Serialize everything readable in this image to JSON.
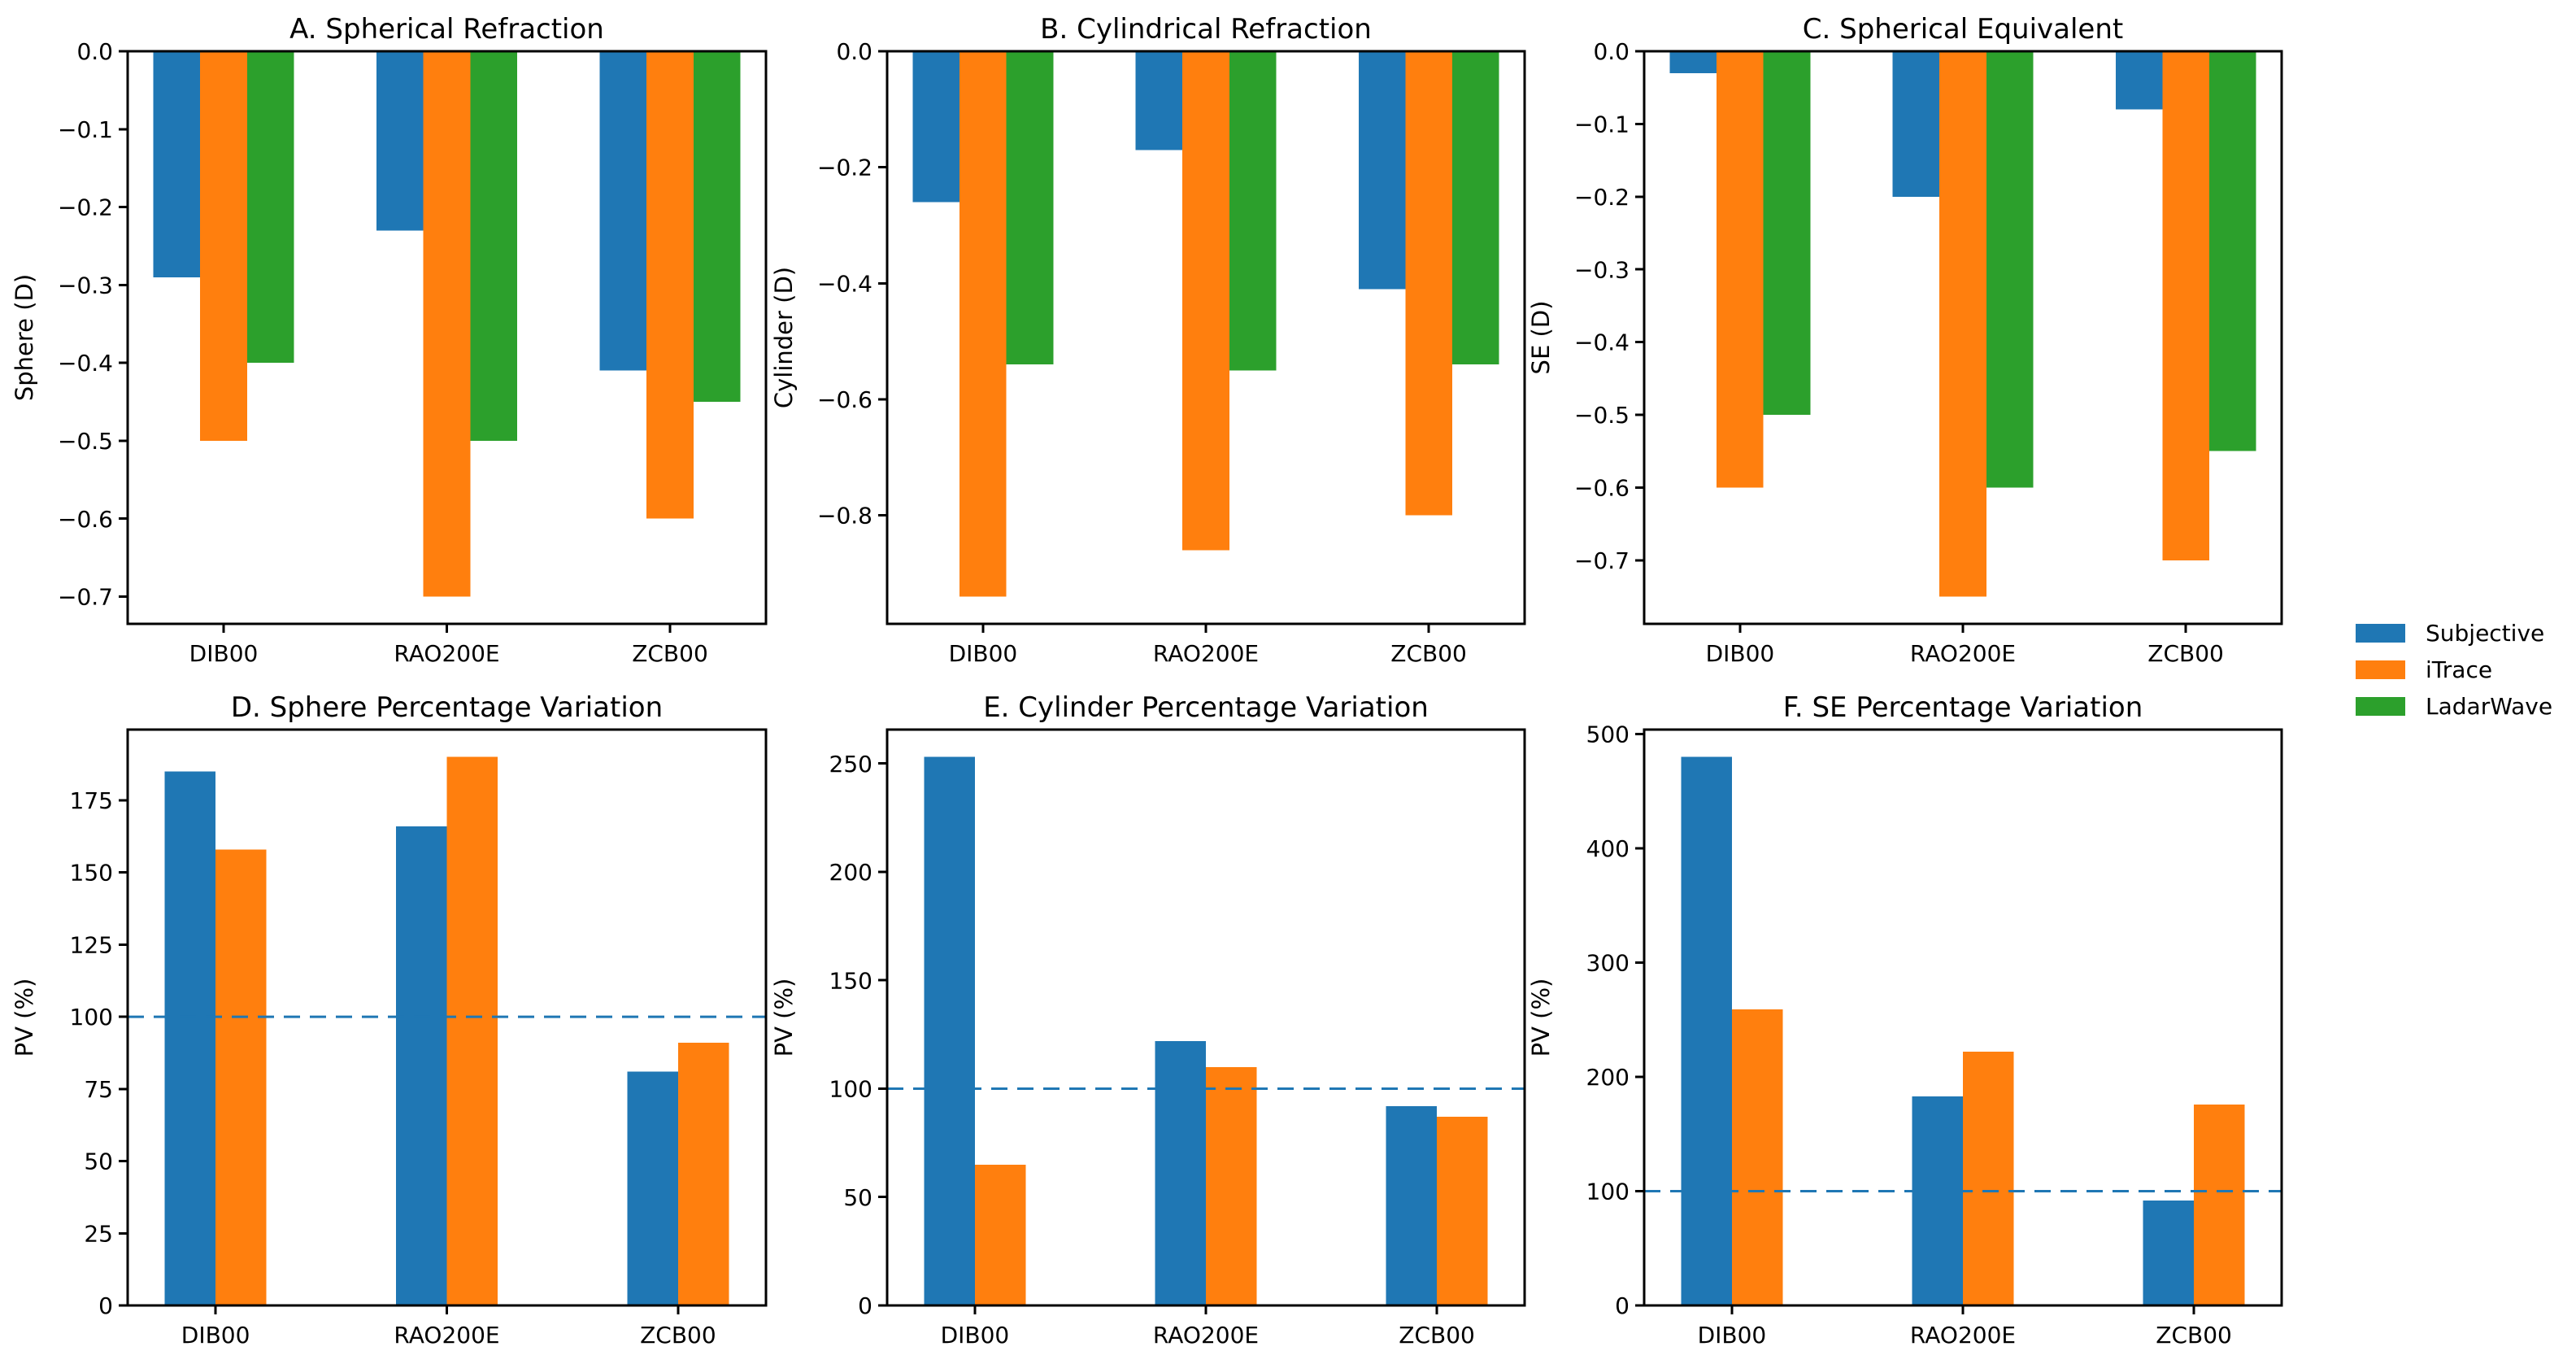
{
  "figure": {
    "background_color": "#ffffff"
  },
  "legend": {
    "position": "outside-right-center",
    "items": [
      {
        "label": "Subjective",
        "color": "#1f77b4"
      },
      {
        "label": "iTrace",
        "color": "#ff7f0e"
      },
      {
        "label": "LadarWave",
        "color": "#2ca02c"
      }
    ]
  },
  "reference_line_color": "#1f77b4",
  "axis_color": "#000000",
  "chart_data": [
    {
      "id": "A",
      "type": "bar",
      "title": "A. Spherical Refraction",
      "ylabel": "Sphere (D)",
      "categories": [
        "DIB00",
        "RAO200E",
        "ZCB00"
      ],
      "series": [
        {
          "name": "Subjective",
          "color": "#1f77b4",
          "values": [
            -0.29,
            -0.23,
            -0.41
          ]
        },
        {
          "name": "iTrace",
          "color": "#ff7f0e",
          "values": [
            -0.5,
            -0.7,
            -0.6
          ]
        },
        {
          "name": "LadarWave",
          "color": "#2ca02c",
          "values": [
            -0.4,
            -0.5,
            -0.45
          ]
        }
      ],
      "yticks": [
        0.0,
        -0.1,
        -0.2,
        -0.3,
        -0.4,
        -0.5,
        -0.6,
        -0.7
      ],
      "ytick_labels": [
        "0.0",
        "−0.1",
        "−0.2",
        "−0.3",
        "−0.4",
        "−0.5",
        "−0.6",
        "−0.7"
      ],
      "ylim": [
        -0.735,
        0
      ],
      "grid": false,
      "reference_line": null
    },
    {
      "id": "B",
      "type": "bar",
      "title": "B. Cylindrical Refraction",
      "ylabel": "Cylinder (D)",
      "categories": [
        "DIB00",
        "RAO200E",
        "ZCB00"
      ],
      "series": [
        {
          "name": "Subjective",
          "color": "#1f77b4",
          "values": [
            -0.26,
            -0.17,
            -0.41
          ]
        },
        {
          "name": "iTrace",
          "color": "#ff7f0e",
          "values": [
            -0.94,
            -0.86,
            -0.8
          ]
        },
        {
          "name": "LadarWave",
          "color": "#2ca02c",
          "values": [
            -0.54,
            -0.55,
            -0.54
          ]
        }
      ],
      "yticks": [
        0.0,
        -0.2,
        -0.4,
        -0.6,
        -0.8
      ],
      "ytick_labels": [
        "0.0",
        "−0.2",
        "−0.4",
        "−0.6",
        "−0.8"
      ],
      "ylim": [
        -0.987,
        0
      ],
      "grid": false,
      "reference_line": null
    },
    {
      "id": "C",
      "type": "bar",
      "title": "C. Spherical Equivalent",
      "ylabel": "SE (D)",
      "categories": [
        "DIB00",
        "RAO200E",
        "ZCB00"
      ],
      "series": [
        {
          "name": "Subjective",
          "color": "#1f77b4",
          "values": [
            -0.03,
            -0.2,
            -0.08
          ]
        },
        {
          "name": "iTrace",
          "color": "#ff7f0e",
          "values": [
            -0.6,
            -0.75,
            -0.7
          ]
        },
        {
          "name": "LadarWave",
          "color": "#2ca02c",
          "values": [
            -0.5,
            -0.6,
            -0.55
          ]
        }
      ],
      "yticks": [
        0.0,
        -0.1,
        -0.2,
        -0.3,
        -0.4,
        -0.5,
        -0.6,
        -0.7
      ],
      "ytick_labels": [
        "0.0",
        "−0.1",
        "−0.2",
        "−0.3",
        "−0.4",
        "−0.5",
        "−0.6",
        "−0.7"
      ],
      "ylim": [
        -0.7875,
        0
      ],
      "grid": false,
      "reference_line": null
    },
    {
      "id": "D",
      "type": "bar",
      "title": "D. Sphere Percentage Variation",
      "ylabel": "PV (%)",
      "categories": [
        "DIB00",
        "RAO200E",
        "ZCB00"
      ],
      "series": [
        {
          "name": "Subjective",
          "color": "#1f77b4",
          "values": [
            185,
            166,
            81
          ]
        },
        {
          "name": "iTrace",
          "color": "#ff7f0e",
          "values": [
            158,
            190,
            91
          ]
        }
      ],
      "yticks": [
        0,
        25,
        50,
        75,
        100,
        125,
        150,
        175
      ],
      "ytick_labels": [
        "0",
        "25",
        "50",
        "75",
        "100",
        "125",
        "150",
        "175"
      ],
      "ylim": [
        0,
        199.5
      ],
      "grid": false,
      "reference_line": 100
    },
    {
      "id": "E",
      "type": "bar",
      "title": "E. Cylinder Percentage Variation",
      "ylabel": "PV (%)",
      "categories": [
        "DIB00",
        "RAO200E",
        "ZCB00"
      ],
      "series": [
        {
          "name": "Subjective",
          "color": "#1f77b4",
          "values": [
            253,
            122,
            92
          ]
        },
        {
          "name": "iTrace",
          "color": "#ff7f0e",
          "values": [
            65,
            110,
            87
          ]
        }
      ],
      "yticks": [
        0,
        50,
        100,
        150,
        200,
        250
      ],
      "ytick_labels": [
        "0",
        "50",
        "100",
        "150",
        "200",
        "250"
      ],
      "ylim": [
        0,
        265.65
      ],
      "grid": false,
      "reference_line": 100
    },
    {
      "id": "F",
      "type": "bar",
      "title": "F. SE Percentage Variation",
      "ylabel": "PV (%)",
      "categories": [
        "DIB00",
        "RAO200E",
        "ZCB00"
      ],
      "series": [
        {
          "name": "Subjective",
          "color": "#1f77b4",
          "values": [
            480,
            183,
            92
          ]
        },
        {
          "name": "iTrace",
          "color": "#ff7f0e",
          "values": [
            259,
            222,
            176
          ]
        }
      ],
      "yticks": [
        0,
        100,
        200,
        300,
        400,
        500
      ],
      "ytick_labels": [
        "0",
        "100",
        "200",
        "300",
        "400",
        "500"
      ],
      "ylim": [
        0,
        504
      ],
      "grid": false,
      "reference_line": 100
    }
  ]
}
